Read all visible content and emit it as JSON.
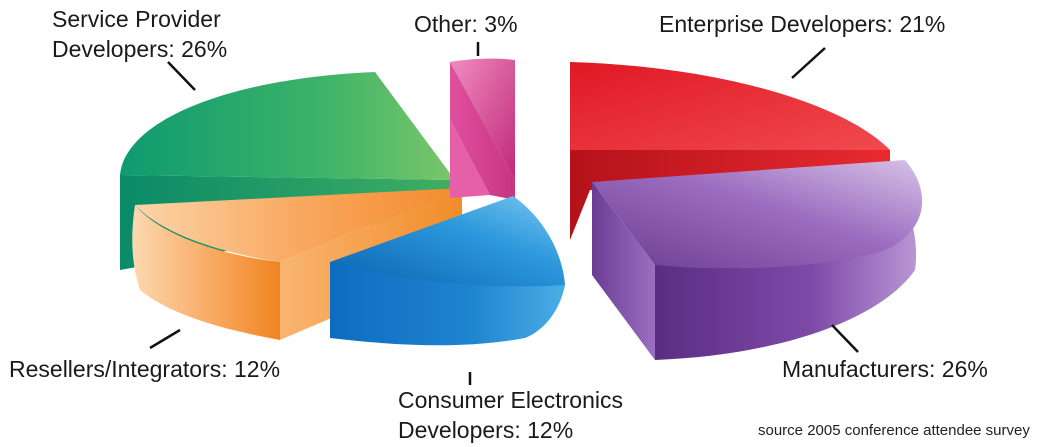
{
  "chart_data": {
    "type": "pie",
    "style": "3d-exploded",
    "slices": [
      {
        "name": "Enterprise Developers",
        "value": 21,
        "label": "Enterprise Developers: 21%",
        "color": "#e8202a"
      },
      {
        "name": "Manufacturers",
        "value": 26,
        "label": "Manufacturers: 26%",
        "color": "#8e5bb0"
      },
      {
        "name": "Consumer Electronics Developers",
        "value": 12,
        "label_line1": "Consumer Electronics",
        "label_line2": "Developers: 12%",
        "color": "#2a8fd8"
      },
      {
        "name": "Resellers/Integrators",
        "value": 12,
        "label": "Resellers/Integrators: 12%",
        "color": "#f5923a"
      },
      {
        "name": "Service Provider Developers",
        "value": 26,
        "label_line1": "Service Provider",
        "label_line2": "Developers: 26%",
        "color": "#2eaa6a"
      },
      {
        "name": "Other",
        "value": 3,
        "label": "Other: 3%",
        "color": "#d94a9a"
      }
    ],
    "source_note": "source 2005 conference attendee survey"
  }
}
